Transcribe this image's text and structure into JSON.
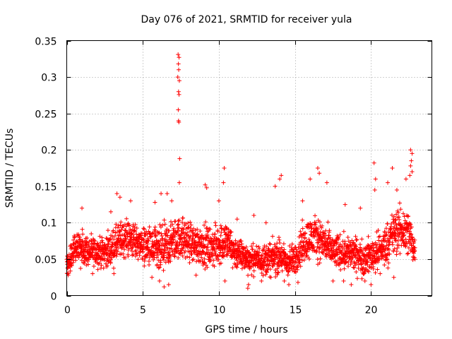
{
  "chart_data": {
    "type": "scatter",
    "title": "Day 076 of 2021, SRMTID for receiver yula",
    "xlabel": "GPS time / hours",
    "ylabel": "SRMTID / TECUs",
    "xlim": [
      0,
      24
    ],
    "ylim": [
      0,
      0.35
    ],
    "xticks": [
      0,
      5,
      10,
      15,
      20
    ],
    "xtick_labels": [
      "0",
      "5",
      "10",
      "15",
      "20"
    ],
    "yticks": [
      0,
      0.05,
      0.1,
      0.15,
      0.2,
      0.25,
      0.3,
      0.35
    ],
    "ytick_labels": [
      "0",
      "0.05",
      "0.1",
      "0.15",
      "0.2",
      "0.25",
      "0.3",
      "0.35"
    ],
    "grid": true,
    "marker": "+",
    "color": "#ff0000",
    "envelope": {
      "x": [
        0.0,
        0.5,
        1.0,
        1.5,
        2.0,
        2.5,
        3.0,
        3.5,
        4.0,
        4.5,
        5.0,
        5.5,
        6.0,
        6.5,
        7.0,
        7.5,
        8.0,
        8.5,
        9.0,
        9.5,
        10.0,
        10.5,
        11.0,
        11.5,
        12.0,
        12.5,
        13.0,
        13.5,
        14.0,
        14.5,
        15.0,
        15.5,
        16.0,
        16.5,
        17.0,
        17.5,
        18.0,
        18.5,
        19.0,
        19.5,
        20.0,
        20.5,
        21.0,
        21.5,
        22.0,
        22.5,
        22.9
      ],
      "y": [
        0.045,
        0.06,
        0.065,
        0.06,
        0.06,
        0.06,
        0.065,
        0.075,
        0.08,
        0.075,
        0.07,
        0.065,
        0.06,
        0.065,
        0.075,
        0.08,
        0.075,
        0.07,
        0.07,
        0.065,
        0.07,
        0.075,
        0.06,
        0.055,
        0.05,
        0.05,
        0.05,
        0.05,
        0.055,
        0.045,
        0.05,
        0.07,
        0.08,
        0.08,
        0.07,
        0.06,
        0.06,
        0.06,
        0.055,
        0.05,
        0.055,
        0.06,
        0.07,
        0.085,
        0.09,
        0.085,
        0.06
      ],
      "spread": [
        0.015,
        0.02,
        0.025,
        0.02,
        0.02,
        0.022,
        0.025,
        0.028,
        0.028,
        0.025,
        0.025,
        0.03,
        0.035,
        0.035,
        0.03,
        0.03,
        0.03,
        0.028,
        0.03,
        0.028,
        0.03,
        0.03,
        0.025,
        0.022,
        0.02,
        0.02,
        0.022,
        0.025,
        0.025,
        0.022,
        0.022,
        0.03,
        0.03,
        0.03,
        0.028,
        0.025,
        0.025,
        0.025,
        0.025,
        0.025,
        0.025,
        0.028,
        0.03,
        0.032,
        0.035,
        0.035,
        0.02
      ]
    },
    "points_per_hour": 110,
    "peaks": [
      [
        7.32,
        0.331
      ],
      [
        7.38,
        0.327
      ],
      [
        7.34,
        0.318
      ],
      [
        7.36,
        0.31
      ],
      [
        7.3,
        0.3
      ],
      [
        7.4,
        0.295
      ],
      [
        7.35,
        0.28
      ],
      [
        7.38,
        0.276
      ],
      [
        7.33,
        0.255
      ],
      [
        7.35,
        0.24
      ],
      [
        7.37,
        0.238
      ],
      [
        7.42,
        0.188
      ],
      [
        7.4,
        0.155
      ],
      [
        10.35,
        0.175
      ],
      [
        10.3,
        0.155
      ],
      [
        9.1,
        0.152
      ],
      [
        9.2,
        0.148
      ],
      [
        14.1,
        0.165
      ],
      [
        14.0,
        0.16
      ],
      [
        13.7,
        0.15
      ],
      [
        16.5,
        0.175
      ],
      [
        16.6,
        0.168
      ],
      [
        16.0,
        0.16
      ],
      [
        17.1,
        0.155
      ],
      [
        20.2,
        0.182
      ],
      [
        20.3,
        0.16
      ],
      [
        20.25,
        0.145
      ],
      [
        21.4,
        0.175
      ],
      [
        21.1,
        0.155
      ],
      [
        22.6,
        0.2
      ],
      [
        22.7,
        0.195
      ],
      [
        22.65,
        0.185
      ],
      [
        22.6,
        0.178
      ],
      [
        22.7,
        0.17
      ],
      [
        22.55,
        0.165
      ],
      [
        22.3,
        0.16
      ],
      [
        21.7,
        0.145
      ],
      [
        3.3,
        0.14
      ],
      [
        3.5,
        0.135
      ],
      [
        6.2,
        0.14
      ],
      [
        6.6,
        0.14
      ],
      [
        6.9,
        0.13
      ],
      [
        4.2,
        0.13
      ],
      [
        5.8,
        0.128
      ],
      [
        18.3,
        0.125
      ],
      [
        19.3,
        0.12
      ],
      [
        1.0,
        0.12
      ],
      [
        2.9,
        0.115
      ],
      [
        15.5,
        0.13
      ],
      [
        12.3,
        0.11
      ],
      [
        11.2,
        0.105
      ],
      [
        10.0,
        0.13
      ],
      [
        13.1,
        0.1
      ],
      [
        0.05,
        0.03
      ],
      [
        0.1,
        0.028
      ],
      [
        1.7,
        0.03
      ],
      [
        3.1,
        0.03
      ],
      [
        5.6,
        0.025
      ],
      [
        6.1,
        0.02
      ],
      [
        6.4,
        0.012
      ],
      [
        6.7,
        0.015
      ],
      [
        8.5,
        0.028
      ],
      [
        10.4,
        0.02
      ],
      [
        11.9,
        0.01
      ],
      [
        11.95,
        0.015
      ],
      [
        12.8,
        0.02
      ],
      [
        14.3,
        0.02
      ],
      [
        14.6,
        0.015
      ],
      [
        15.2,
        0.018
      ],
      [
        17.5,
        0.02
      ],
      [
        18.2,
        0.02
      ],
      [
        18.7,
        0.015
      ],
      [
        19.6,
        0.02
      ],
      [
        20.0,
        0.015
      ],
      [
        20.6,
        0.03
      ],
      [
        21.5,
        0.025
      ]
    ]
  }
}
